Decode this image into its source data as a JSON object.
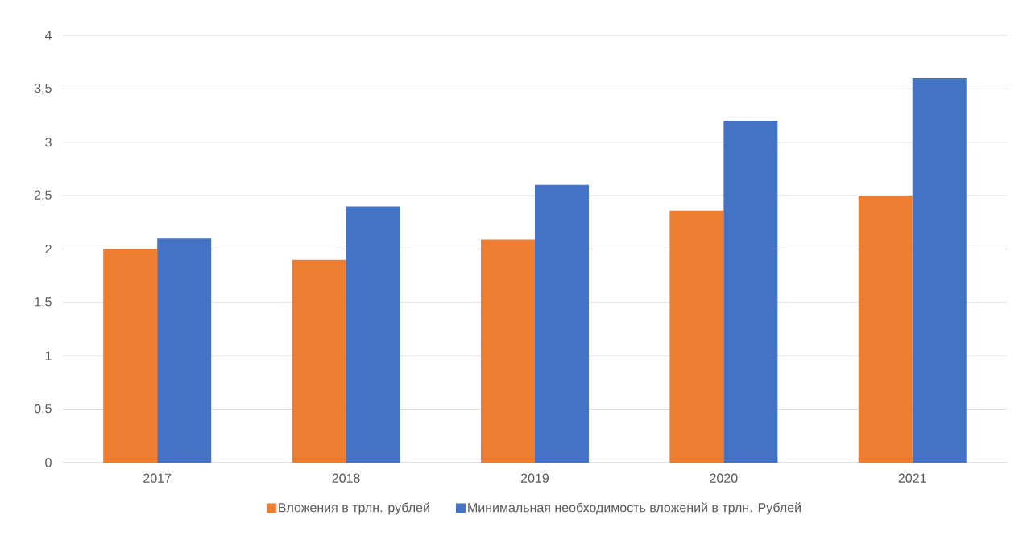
{
  "chart_data": {
    "type": "bar",
    "categories": [
      "2017",
      "2018",
      "2019",
      "2020",
      "2021"
    ],
    "series": [
      {
        "name": "Вложения в трлн. рублей",
        "color": "#ed7d31",
        "values": [
          2.0,
          1.9,
          2.09,
          2.36,
          2.5
        ]
      },
      {
        "name": "Минимальная необходимость вложений в трлн. Рублей",
        "color": "#4472c4",
        "values": [
          2.1,
          2.4,
          2.6,
          3.2,
          3.6
        ]
      }
    ],
    "ylim": [
      0,
      4
    ],
    "yticks": [
      {
        "value": 0,
        "label": "0"
      },
      {
        "value": 0.5,
        "label": "0,5"
      },
      {
        "value": 1,
        "label": "1"
      },
      {
        "value": 1.5,
        "label": "1,5"
      },
      {
        "value": 2,
        "label": "2"
      },
      {
        "value": 2.5,
        "label": "2,5"
      },
      {
        "value": 3,
        "label": "3"
      },
      {
        "value": 3.5,
        "label": "3,5"
      },
      {
        "value": 4,
        "label": "4"
      }
    ],
    "grid": "y",
    "legend": "bottom"
  }
}
